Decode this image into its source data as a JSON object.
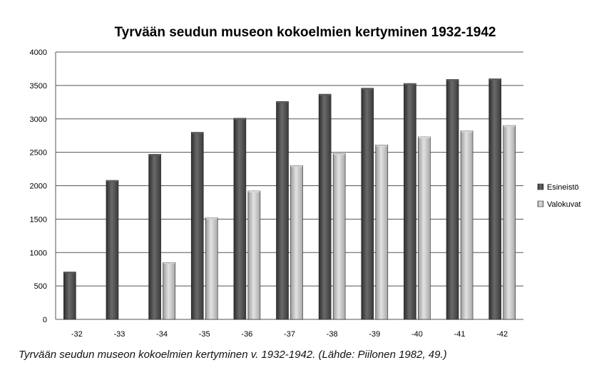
{
  "chart_data": {
    "type": "bar",
    "title": "Tyrvään seudun museon kokoelmien kertyminen 1932-1942",
    "categories": [
      "-32",
      "-33",
      "-34",
      "-35",
      "-36",
      "-37",
      "-38",
      "-39",
      "-40",
      "-41",
      "-42"
    ],
    "series": [
      {
        "name": "Esineistö",
        "values": [
          710,
          2080,
          2470,
          2800,
          3010,
          3260,
          3370,
          3460,
          3530,
          3590,
          3600
        ]
      },
      {
        "name": "Valokuvat",
        "values": [
          null,
          null,
          850,
          1520,
          1920,
          2300,
          2480,
          2610,
          2730,
          2820,
          2900
        ]
      }
    ],
    "ylim": [
      0,
      4000
    ],
    "yticks": [
      0,
      500,
      1000,
      1500,
      2000,
      2500,
      3000,
      3500,
      4000
    ],
    "grid": true,
    "legend_position": "right",
    "colors": {
      "Esineistö": "#4a4a4a",
      "Valokuvat": "#c4c4c4"
    }
  },
  "caption": "Tyrvään seudun museon kokoelmien kertyminen v. 1932-1942. (Lähde: Piilonen 1982, 49.)"
}
